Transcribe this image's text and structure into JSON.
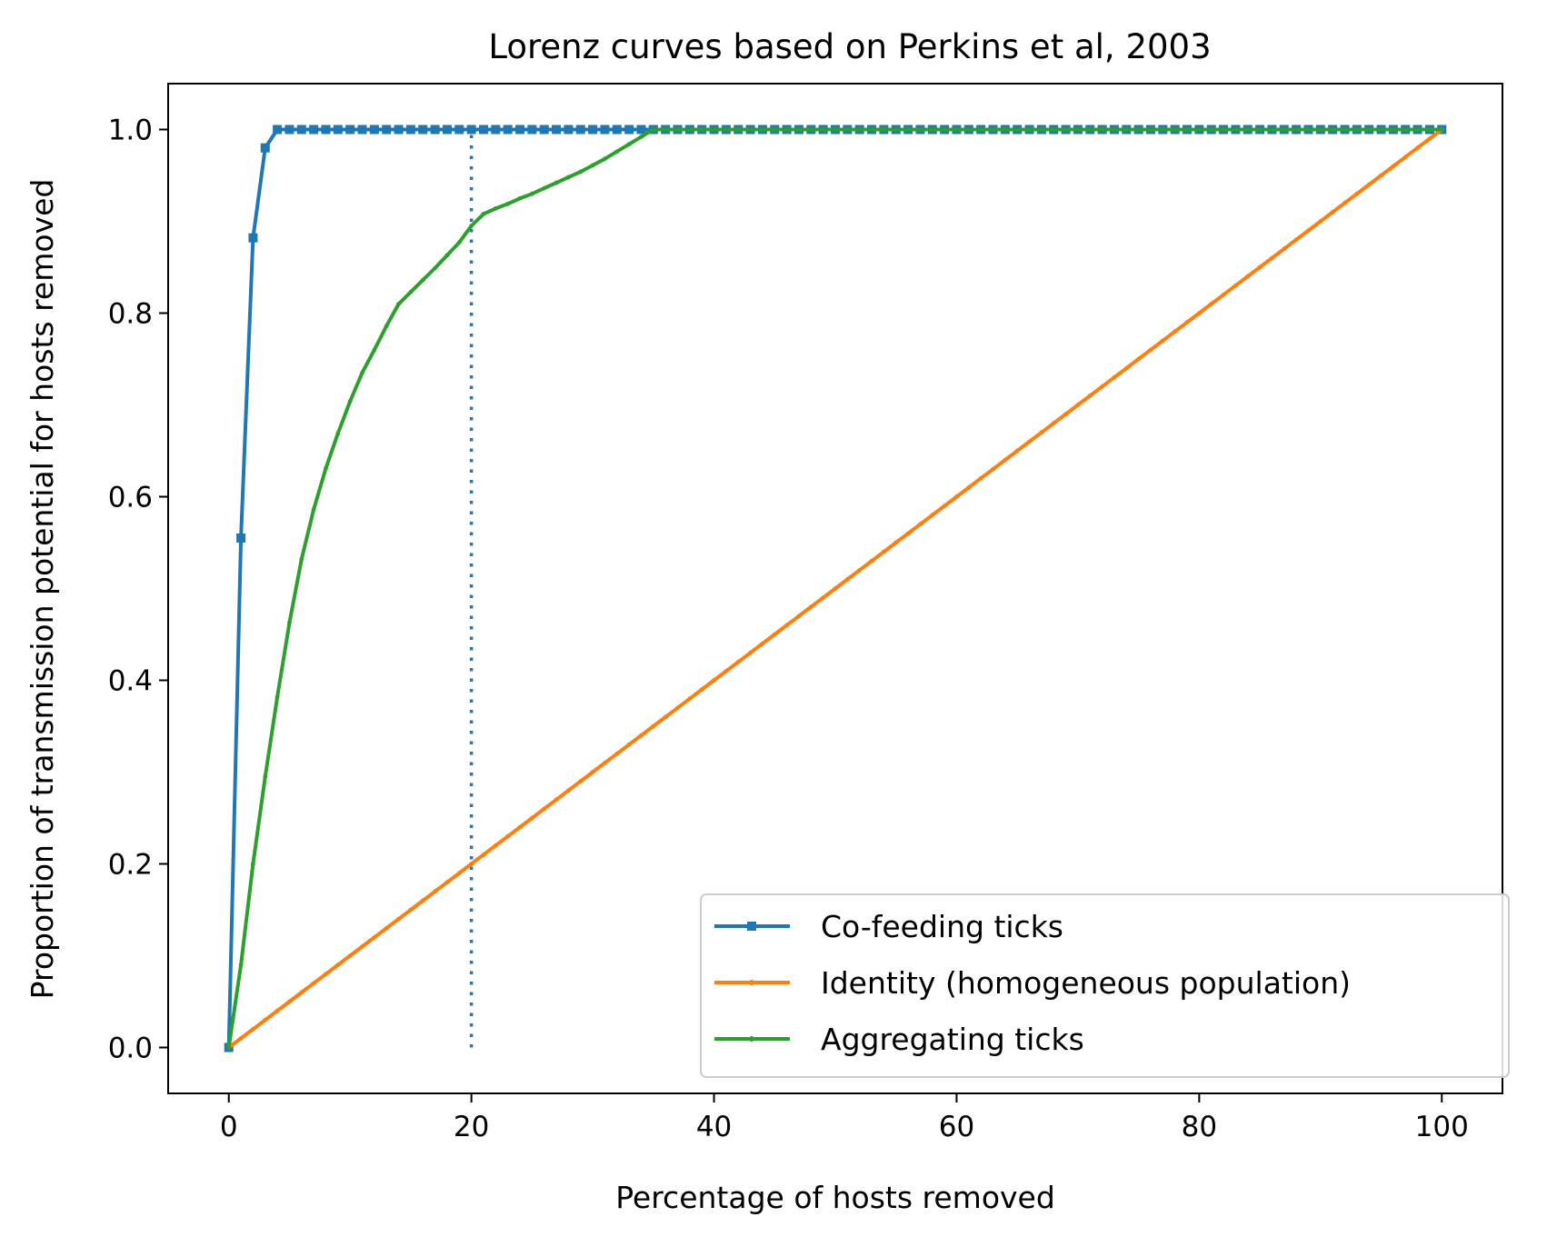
{
  "chart_data": {
    "type": "line",
    "title": "Lorenz curves based on Perkins et al, 2003",
    "xlabel": "Percentage of hosts removed",
    "ylabel": "Proportion of transmission potential for hosts removed",
    "xlim": [
      -5,
      105
    ],
    "ylim": [
      -0.05,
      1.05
    ],
    "xticks": [
      0,
      20,
      40,
      60,
      80,
      100
    ],
    "yticks": [
      0.0,
      0.2,
      0.4,
      0.6,
      0.8,
      1.0
    ],
    "xtick_labels": [
      "0",
      "20",
      "40",
      "60",
      "80",
      "100"
    ],
    "ytick_labels": [
      "0.0",
      "0.2",
      "0.4",
      "0.6",
      "0.8",
      "1.0"
    ],
    "grid": false,
    "legend_position": "lower right",
    "series": [
      {
        "name": "Co-feeding ticks",
        "color": "#1f77b4",
        "marker": "square",
        "x": [
          0,
          1,
          2,
          3,
          4,
          5,
          6,
          7,
          8,
          9,
          10,
          11,
          12,
          13,
          14,
          15,
          16,
          17,
          18,
          19,
          20,
          21,
          22,
          23,
          24,
          25,
          26,
          27,
          28,
          29,
          30,
          31,
          32,
          33,
          34,
          35,
          36,
          37,
          38,
          39,
          40,
          41,
          42,
          43,
          44,
          45,
          46,
          47,
          48,
          49,
          50,
          51,
          52,
          53,
          54,
          55,
          56,
          57,
          58,
          59,
          60,
          61,
          62,
          63,
          64,
          65,
          66,
          67,
          68,
          69,
          70,
          71,
          72,
          73,
          74,
          75,
          76,
          77,
          78,
          79,
          80,
          81,
          82,
          83,
          84,
          85,
          86,
          87,
          88,
          89,
          90,
          91,
          92,
          93,
          94,
          95,
          96,
          97,
          98,
          99,
          100
        ],
        "y": [
          0.0,
          0.555,
          0.882,
          0.98,
          1.0,
          1.0,
          1.0,
          1.0,
          1.0,
          1.0,
          1.0,
          1.0,
          1.0,
          1.0,
          1.0,
          1.0,
          1.0,
          1.0,
          1.0,
          1.0,
          1.0,
          1.0,
          1.0,
          1.0,
          1.0,
          1.0,
          1.0,
          1.0,
          1.0,
          1.0,
          1.0,
          1.0,
          1.0,
          1.0,
          1.0,
          1.0,
          1.0,
          1.0,
          1.0,
          1.0,
          1.0,
          1.0,
          1.0,
          1.0,
          1.0,
          1.0,
          1.0,
          1.0,
          1.0,
          1.0,
          1.0,
          1.0,
          1.0,
          1.0,
          1.0,
          1.0,
          1.0,
          1.0,
          1.0,
          1.0,
          1.0,
          1.0,
          1.0,
          1.0,
          1.0,
          1.0,
          1.0,
          1.0,
          1.0,
          1.0,
          1.0,
          1.0,
          1.0,
          1.0,
          1.0,
          1.0,
          1.0,
          1.0,
          1.0,
          1.0,
          1.0,
          1.0,
          1.0,
          1.0,
          1.0,
          1.0,
          1.0,
          1.0,
          1.0,
          1.0,
          1.0,
          1.0,
          1.0,
          1.0,
          1.0,
          1.0,
          1.0,
          1.0,
          1.0,
          1.0,
          1.0
        ]
      },
      {
        "name": "Identity (homogeneous population)",
        "color": "#ff7f0e",
        "marker": "dot",
        "x": [
          0,
          1,
          2,
          3,
          4,
          5,
          6,
          7,
          8,
          9,
          10,
          11,
          12,
          13,
          14,
          15,
          16,
          17,
          18,
          19,
          20,
          21,
          22,
          23,
          24,
          25,
          26,
          27,
          28,
          29,
          30,
          31,
          32,
          33,
          34,
          35,
          36,
          37,
          38,
          39,
          40,
          41,
          42,
          43,
          44,
          45,
          46,
          47,
          48,
          49,
          50,
          51,
          52,
          53,
          54,
          55,
          56,
          57,
          58,
          59,
          60,
          61,
          62,
          63,
          64,
          65,
          66,
          67,
          68,
          69,
          70,
          71,
          72,
          73,
          74,
          75,
          76,
          77,
          78,
          79,
          80,
          81,
          82,
          83,
          84,
          85,
          86,
          87,
          88,
          89,
          90,
          91,
          92,
          93,
          94,
          95,
          96,
          97,
          98,
          99,
          100
        ],
        "y": [
          0.0,
          0.01,
          0.02,
          0.03,
          0.04,
          0.05,
          0.06,
          0.07,
          0.08,
          0.09,
          0.1,
          0.11,
          0.12,
          0.13,
          0.14,
          0.15,
          0.16,
          0.17,
          0.18,
          0.19,
          0.2,
          0.21,
          0.22,
          0.23,
          0.24,
          0.25,
          0.26,
          0.27,
          0.28,
          0.29,
          0.3,
          0.31,
          0.32,
          0.33,
          0.34,
          0.35,
          0.36,
          0.37,
          0.38,
          0.39,
          0.4,
          0.41,
          0.42,
          0.43,
          0.44,
          0.45,
          0.46,
          0.47,
          0.48,
          0.49,
          0.5,
          0.51,
          0.52,
          0.53,
          0.54,
          0.55,
          0.56,
          0.57,
          0.58,
          0.59,
          0.6,
          0.61,
          0.62,
          0.63,
          0.64,
          0.65,
          0.66,
          0.67,
          0.68,
          0.69,
          0.7,
          0.71,
          0.72,
          0.73,
          0.74,
          0.75,
          0.76,
          0.77,
          0.78,
          0.79,
          0.8,
          0.81,
          0.82,
          0.83,
          0.84,
          0.85,
          0.86,
          0.87,
          0.88,
          0.89,
          0.9,
          0.91,
          0.92,
          0.93,
          0.94,
          0.95,
          0.96,
          0.97,
          0.98,
          0.99,
          1.0
        ]
      },
      {
        "name": "Aggregating ticks",
        "color": "#2ca02c",
        "marker": "dot",
        "x": [
          0,
          1,
          2,
          3,
          4,
          5,
          6,
          7,
          8,
          9,
          10,
          11,
          12,
          13,
          14,
          15,
          16,
          17,
          18,
          19,
          20,
          21,
          22,
          23,
          24,
          25,
          26,
          27,
          28,
          29,
          30,
          31,
          32,
          33,
          34,
          35,
          36,
          37,
          38,
          39,
          40,
          41,
          42,
          43,
          44,
          45,
          46,
          47,
          48,
          49,
          50,
          51,
          52,
          53,
          54,
          55,
          56,
          57,
          58,
          59,
          60,
          61,
          62,
          63,
          64,
          65,
          66,
          67,
          68,
          69,
          70,
          71,
          72,
          73,
          74,
          75,
          76,
          77,
          78,
          79,
          80,
          81,
          82,
          83,
          84,
          85,
          86,
          87,
          88,
          89,
          90,
          91,
          92,
          93,
          94,
          95,
          96,
          97,
          98,
          99,
          100
        ],
        "y": [
          0.0,
          0.09,
          0.2,
          0.295,
          0.382,
          0.463,
          0.532,
          0.586,
          0.631,
          0.669,
          0.704,
          0.735,
          0.76,
          0.786,
          0.81,
          0.823,
          0.836,
          0.849,
          0.863,
          0.877,
          0.895,
          0.908,
          0.914,
          0.919,
          0.925,
          0.93,
          0.936,
          0.942,
          0.948,
          0.954,
          0.961,
          0.968,
          0.976,
          0.984,
          0.992,
          1.0,
          1.0,
          1.0,
          1.0,
          1.0,
          1.0,
          1.0,
          1.0,
          1.0,
          1.0,
          1.0,
          1.0,
          1.0,
          1.0,
          1.0,
          1.0,
          1.0,
          1.0,
          1.0,
          1.0,
          1.0,
          1.0,
          1.0,
          1.0,
          1.0,
          1.0,
          1.0,
          1.0,
          1.0,
          1.0,
          1.0,
          1.0,
          1.0,
          1.0,
          1.0,
          1.0,
          1.0,
          1.0,
          1.0,
          1.0,
          1.0,
          1.0,
          1.0,
          1.0,
          1.0,
          1.0,
          1.0,
          1.0,
          1.0,
          1.0,
          1.0,
          1.0,
          1.0,
          1.0,
          1.0,
          1.0,
          1.0,
          1.0,
          1.0,
          1.0,
          1.0,
          1.0,
          1.0,
          1.0,
          1.0,
          1.0
        ]
      }
    ],
    "reference_lines": [
      {
        "kind": "vertical",
        "x": 20,
        "y_from": 0.0,
        "y_to": 1.0,
        "style": "dotted",
        "color": "#1f77b4"
      }
    ]
  }
}
